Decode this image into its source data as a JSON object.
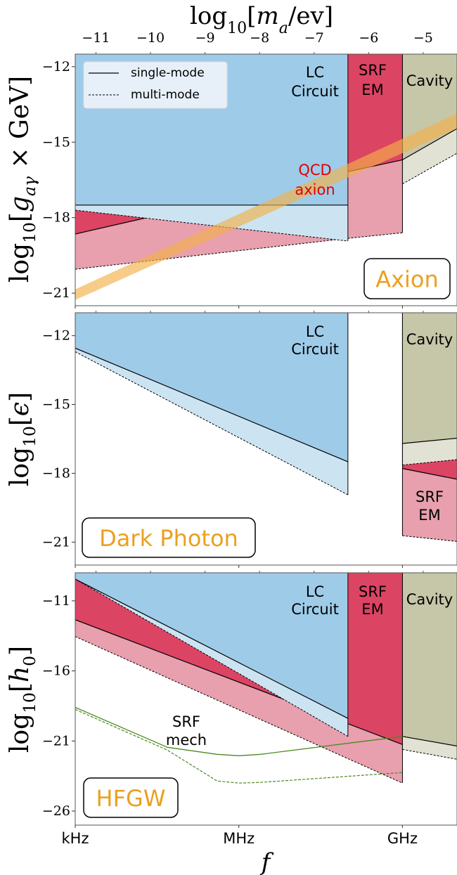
{
  "colors": {
    "lc_dark": "#9ecbe8",
    "lc_light": "#cce4f2",
    "srf_dark": "#dc4463",
    "srf_light": "#e89fae",
    "cav_dark": "#c6c6a8",
    "cav_light": "#e1e2d4",
    "qcd_band": "#f2b04a",
    "qcd_text": "#e00000",
    "tag_text": "#eaa020",
    "mech_line": "#4a8a1f"
  },
  "legend": {
    "single": "single-mode",
    "multi": "multi-mode"
  },
  "top_axis": {
    "label": [
      {
        "t": "log"
      },
      {
        "t": "10",
        "sub": true
      },
      {
        "t": "["
      },
      {
        "t": "m",
        "it": true
      },
      {
        "t": "a",
        "sub": true,
        "it": true
      },
      {
        "t": "/ev]"
      }
    ],
    "ticks": [
      "−11",
      "−10",
      "−9",
      "−8",
      "−7",
      "−6",
      "−5"
    ],
    "tick_values": [
      -11,
      -10,
      -9,
      -8,
      -7,
      -6,
      -5
    ],
    "mass_to_logf_offset": 14.38
  },
  "bottom_axis": {
    "ticks": [
      "kHz",
      "MHz",
      "GHz"
    ],
    "tick_values": [
      3,
      6,
      9
    ],
    "label": "f"
  },
  "chart_data": [
    {
      "type": "area",
      "tag": "Axion",
      "xlim": [
        3,
        10
      ],
      "ylim": [
        -21.5,
        -11.5
      ],
      "yticks": [
        -12,
        -15,
        -18,
        -21
      ],
      "ytick_labels": [
        "−12",
        "−15",
        "−18",
        "−21"
      ],
      "ylabel": [
        {
          "t": "log"
        },
        {
          "t": "10",
          "sub": true
        },
        {
          "t": "["
        },
        {
          "t": "g",
          "it": true
        },
        {
          "t": "aγ",
          "sub": true,
          "it": true
        },
        {
          "t": " × GeV]"
        }
      ],
      "regions": [
        {
          "name": "SRF EM",
          "label": [
            "SRF",
            "EM"
          ],
          "color": "srf",
          "x": [
            3,
            9
          ],
          "single": [
            [
              3,
              -18.65
            ],
            [
              8,
              -16.17
            ],
            [
              9,
              -15.7
            ]
          ],
          "multi": [
            [
              3,
              -20.05
            ],
            [
              8,
              -18.82
            ],
            [
              9,
              -18.6
            ]
          ]
        },
        {
          "name": "LC Circuit",
          "label": [
            "LC",
            "Circuit"
          ],
          "color": "lc",
          "x": [
            3,
            8
          ],
          "single": [
            [
              3,
              -17.5
            ],
            [
              8,
              -17.5
            ]
          ],
          "multi": [
            [
              3,
              -17.7
            ],
            [
              8,
              -18.93
            ]
          ]
        },
        {
          "name": "Cavity",
          "label": [
            "Cavity"
          ],
          "color": "cav",
          "x": [
            9,
            10
          ],
          "single": [
            [
              9,
              -15.7
            ],
            [
              10,
              -14.46
            ]
          ],
          "multi": [
            [
              9,
              -16.66
            ],
            [
              10,
              -15.44
            ]
          ]
        }
      ],
      "qcd_band": {
        "label": [
          "QCD",
          "axion"
        ],
        "upper": [
          [
            3,
            -20.85
          ],
          [
            10,
            -13.87
          ]
        ],
        "lower": [
          [
            3,
            -21.27
          ],
          [
            10,
            -14.46
          ]
        ]
      }
    },
    {
      "type": "area",
      "tag": "Dark Photon",
      "xlim": [
        3,
        10
      ],
      "ylim": [
        -22,
        -11
      ],
      "yticks": [
        -12,
        -15,
        -18,
        -21
      ],
      "ytick_labels": [
        "−12",
        "−15",
        "−18",
        "−21"
      ],
      "ylabel": [
        {
          "t": "log"
        },
        {
          "t": "10",
          "sub": true
        },
        {
          "t": "["
        },
        {
          "t": "ϵ",
          "it": true
        },
        {
          "t": "]"
        }
      ],
      "regions": [
        {
          "name": "SRF EM",
          "label": [
            "SRF",
            "EM"
          ],
          "color": "srf",
          "x": [
            9,
            10
          ],
          "single": [
            [
              9,
              -17.79
            ],
            [
              10,
              -18.26
            ]
          ],
          "multi": [
            [
              9,
              -20.72
            ],
            [
              10,
              -20.97
            ]
          ]
        },
        {
          "name": "LC Circuit",
          "label": [
            "LC",
            "Circuit"
          ],
          "color": "lc",
          "x": [
            3,
            8
          ],
          "single": [
            [
              3,
              -12.54
            ],
            [
              8,
              -17.5
            ]
          ],
          "multi": [
            [
              3,
              -12.7
            ],
            [
              8,
              -18.94
            ]
          ]
        },
        {
          "name": "Cavity",
          "label": [
            "Cavity"
          ],
          "color": "cav",
          "x": [
            9,
            10
          ],
          "single": [
            [
              9,
              -16.7
            ],
            [
              10,
              -16.47
            ]
          ],
          "multi": [
            [
              9,
              -17.64
            ],
            [
              10,
              -17.4
            ]
          ]
        }
      ]
    },
    {
      "type": "area",
      "tag": "HFGW",
      "xlim": [
        3,
        10
      ],
      "ylim": [
        -27,
        -9
      ],
      "yticks": [
        -11,
        -16,
        -21,
        -26
      ],
      "ytick_labels": [
        "−11",
        "−16",
        "−21",
        "−26"
      ],
      "ylabel": [
        {
          "t": "log"
        },
        {
          "t": "10",
          "sub": true
        },
        {
          "t": "["
        },
        {
          "t": "h",
          "it": true
        },
        {
          "t": "0",
          "sub": true
        },
        {
          "t": "]"
        }
      ],
      "regions": [
        {
          "name": "SRF EM",
          "label": [
            "SRF",
            "EM"
          ],
          "color": "srf",
          "x": [
            3,
            9
          ],
          "single": [
            [
              3,
              -12.35
            ],
            [
              9,
              -21.25
            ]
          ],
          "multi": [
            [
              3,
              -13.55
            ],
            [
              9,
              -24.0
            ]
          ]
        },
        {
          "name": "LC Circuit",
          "label": [
            "LC",
            "Circuit"
          ],
          "color": "lc",
          "x": [
            3,
            8
          ],
          "single": [
            [
              3,
              -9.45
            ],
            [
              8,
              -19.39
            ]
          ],
          "multi": [
            [
              3,
              -9.45
            ],
            [
              8,
              -20.67
            ]
          ]
        },
        {
          "name": "Cavity",
          "label": [
            "Cavity"
          ],
          "color": "cav",
          "x": [
            9,
            10
          ],
          "single": [
            [
              9,
              -20.67
            ],
            [
              10,
              -21.36
            ]
          ],
          "multi": [
            [
              9,
              -21.6
            ],
            [
              10,
              -22.3
            ]
          ]
        }
      ],
      "mech": {
        "label": [
          "SRF",
          "mech"
        ],
        "single": [
          [
            3,
            -18.6
          ],
          [
            4.69,
            -21.45
          ],
          [
            5.6,
            -21.95
          ],
          [
            6,
            -22.05
          ],
          [
            6.4,
            -21.95
          ],
          [
            9,
            -20.67
          ]
        ],
        "multi": [
          [
            3,
            -18.75
          ],
          [
            4.69,
            -21.65
          ],
          [
            5.6,
            -23.85
          ],
          [
            6,
            -24.0
          ],
          [
            6.4,
            -23.95
          ],
          [
            9,
            -23.25
          ]
        ]
      }
    }
  ]
}
